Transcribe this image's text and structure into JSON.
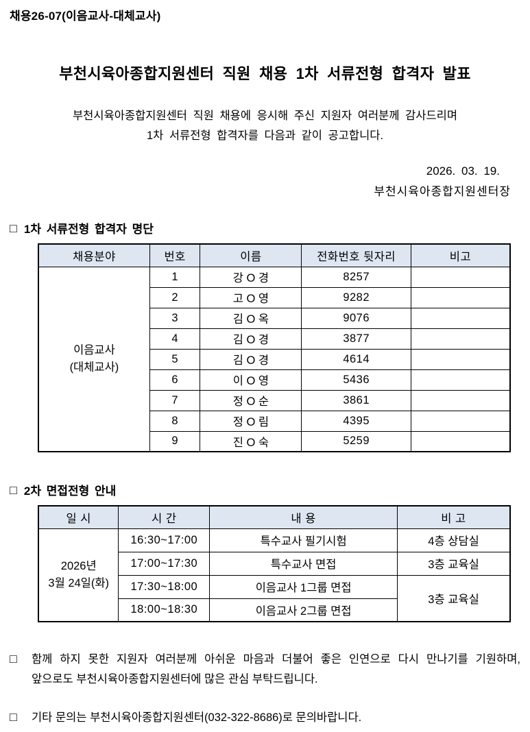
{
  "doc": {
    "ref_no": "채용26-07(이음교사-대체교사)",
    "title": "부천시육아종합지원센터 직원 채용 1차 서류전형 합격자 발표",
    "intro_line1": "부천시육아종합지원센터 직원 채용에 응시해 주신 지원자 여러분께 감사드리며",
    "intro_line2": "1차 서류전형 합격자를 다음과 같이 공고합니다.",
    "date": "2026. 03. 19.",
    "signature": "부천시육아종합지원센터장"
  },
  "section1": {
    "marker": "□",
    "heading": "1차 서류전형 합격자 명단",
    "table": {
      "headers": [
        "채용분야",
        "번호",
        "이름",
        "전화번호 뒷자리",
        "비고"
      ],
      "col_widths": [
        "23.6%",
        "10.7%",
        "21.5%",
        "23.2%",
        "21.0%"
      ],
      "category_line1": "이음교사",
      "category_line2": "(대체교사)",
      "rows": [
        {
          "no": "1",
          "name": "강 O 경",
          "phone": "8257",
          "note": ""
        },
        {
          "no": "2",
          "name": "고 O 영",
          "phone": "9282",
          "note": ""
        },
        {
          "no": "3",
          "name": "김 O 옥",
          "phone": "9076",
          "note": ""
        },
        {
          "no": "4",
          "name": "김 O 경",
          "phone": "3877",
          "note": ""
        },
        {
          "no": "5",
          "name": "김 O 경",
          "phone": "4614",
          "note": ""
        },
        {
          "no": "6",
          "name": "이 O 영",
          "phone": "5436",
          "note": ""
        },
        {
          "no": "7",
          "name": "정 O 순",
          "phone": "3861",
          "note": ""
        },
        {
          "no": "8",
          "name": "정 O 림",
          "phone": "4395",
          "note": ""
        },
        {
          "no": "9",
          "name": "진 O 숙",
          "phone": "5259",
          "note": ""
        }
      ]
    }
  },
  "section2": {
    "marker": "□",
    "heading": "2차 면접전형 안내",
    "table": {
      "headers": [
        "일 시",
        "시 간",
        "내 용",
        "비 고"
      ],
      "col_widths": [
        "17.0%",
        "19.3%",
        "39.8%",
        "23.9%"
      ],
      "date_line1": "2026년",
      "date_line2": "3월 24일(화)",
      "rows": [
        {
          "time": "16:30~17:00",
          "content": "특수교사 필기시험",
          "note": "4층 상담실",
          "note_rowspan": 1
        },
        {
          "time": "17:00~17:30",
          "content": "특수교사 면접",
          "note": "3층 교육실",
          "note_rowspan": 1
        },
        {
          "time": "17:30~18:00",
          "content": "이음교사 1그룹 면접",
          "note": "3층 교육실",
          "note_rowspan": 2
        },
        {
          "time": "18:00~18:30",
          "content": "이음교사 2그룹 면접",
          "note": null,
          "note_rowspan": 0
        }
      ]
    }
  },
  "footer": {
    "para1_marker": "□",
    "para1_line1": "함께 하지 못한 지원자 여러분께 아쉬운 마음과 더불어 좋은 인연으로 다시 만나기를 기원하며,",
    "para1_line2": "앞으로도 부천시육아종합지원센터에 많은 관심 부탁드립니다.",
    "para2_marker": "□",
    "para2": "기타 문의는 부천시육아종합지원센터(032-322-8686)로 문의바랍니다."
  },
  "colors": {
    "table_header_bg": "#dee6f2",
    "border": "#000000",
    "text": "#000000"
  }
}
